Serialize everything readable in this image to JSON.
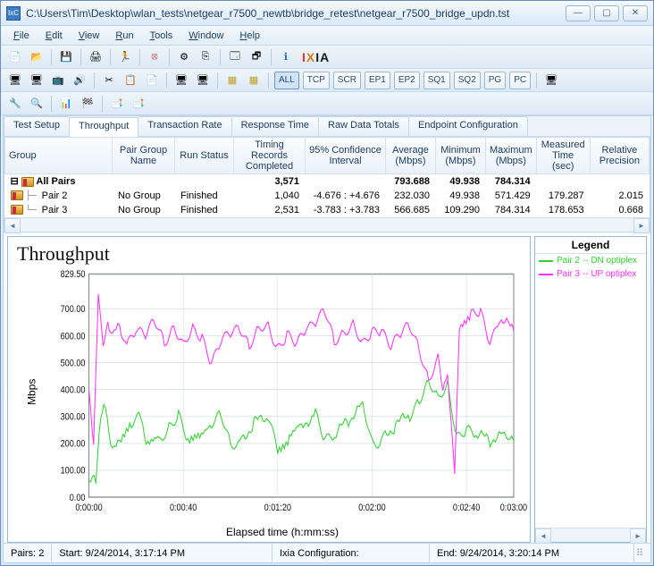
{
  "window": {
    "title": "C:\\Users\\Tim\\Desktop\\wlan_tests\\netgear_r7500_newtb\\bridge_retest\\netgear_r7500_bridge_updn.tst",
    "app_icon_label": "IxC"
  },
  "menu": {
    "file": "File",
    "edit": "Edit",
    "view": "View",
    "run": "Run",
    "tools": "Tools",
    "window": "Window",
    "help": "Help"
  },
  "toolbar2_labels": {
    "all": "ALL",
    "tcp": "TCP",
    "scr": "SCR",
    "ep1": "EP1",
    "ep2": "EP2",
    "sq1": "SQ1",
    "sq2": "SQ2",
    "pg": "PG",
    "pc": "PC"
  },
  "brand": {
    "i": "I",
    "x": "X",
    "ia": "IA"
  },
  "tabs": {
    "test_setup": "Test Setup",
    "throughput": "Throughput",
    "transaction_rate": "Transaction Rate",
    "response_time": "Response Time",
    "raw_data_totals": "Raw Data Totals",
    "endpoint_config": "Endpoint Configuration"
  },
  "grid": {
    "headers": {
      "group": "Group",
      "pair_group": "Pair Group Name",
      "run_status": "Run Status",
      "timing": "Timing Records Completed",
      "conf": "95% Confidence Interval",
      "avg": "Average (Mbps)",
      "min": "Minimum (Mbps)",
      "max": "Maximum (Mbps)",
      "meas": "Measured Time (sec)",
      "rel": "Relative Precision"
    },
    "rows": [
      {
        "group": "All Pairs",
        "pair": "",
        "status": "",
        "timing": "3,571",
        "conf": "",
        "avg": "793.688",
        "min": "49.938",
        "max": "784.314",
        "meas": "",
        "rel": "",
        "bold": true
      },
      {
        "group": "Pair 2",
        "pair": "No Group",
        "status": "Finished",
        "timing": "1,040",
        "conf": "-4.676 : +4.676",
        "avg": "232.030",
        "min": "49.938",
        "max": "571.429",
        "meas": "179.287",
        "rel": "2.015"
      },
      {
        "group": "Pair 3",
        "pair": "No Group",
        "status": "Finished",
        "timing": "2,531",
        "conf": "-3.783 : +3.783",
        "avg": "566.685",
        "min": "109.290",
        "max": "784.314",
        "meas": "178.653",
        "rel": "0.668"
      }
    ]
  },
  "chart": {
    "title": "Throughput",
    "ylabel": "Mbps",
    "xlabel": "Elapsed time (h:mm:ss)",
    "ylim": [
      0,
      829.5
    ],
    "yticks": [
      0,
      100,
      200,
      300,
      400,
      500,
      600,
      700,
      829.5
    ],
    "ytick_labels": [
      "0.00",
      "100.00",
      "200.00",
      "300.00",
      "400.00",
      "500.00",
      "600.00",
      "700.00",
      "829.50"
    ],
    "xlim": [
      0,
      180
    ],
    "xticks": [
      0,
      40,
      80,
      120,
      160,
      180
    ],
    "xtick_labels": [
      "0:00:00",
      "0:00:40",
      "0:01:20",
      "0:02:00",
      "0:02:40",
      "0:03:00"
    ],
    "background": "#ffffff",
    "grid_color": "#cdd7e2",
    "series": [
      {
        "name": "Pair 2 -- DN optiplex",
        "color": "#2fd22f",
        "data": [
          [
            0,
            60
          ],
          [
            3,
            55
          ],
          [
            5,
            300
          ],
          [
            7,
            335
          ],
          [
            10,
            180
          ],
          [
            13,
            195
          ],
          [
            18,
            285
          ],
          [
            22,
            310
          ],
          [
            25,
            190
          ],
          [
            30,
            210
          ],
          [
            34,
            270
          ],
          [
            38,
            305
          ],
          [
            42,
            200
          ],
          [
            47,
            215
          ],
          [
            52,
            278
          ],
          [
            56,
            300
          ],
          [
            60,
            195
          ],
          [
            64,
            210
          ],
          [
            70,
            275
          ],
          [
            76,
            300
          ],
          [
            80,
            190
          ],
          [
            85,
            215
          ],
          [
            90,
            260
          ],
          [
            96,
            320
          ],
          [
            100,
            205
          ],
          [
            104,
            220
          ],
          [
            110,
            290
          ],
          [
            116,
            340
          ],
          [
            120,
            200
          ],
          [
            124,
            210
          ],
          [
            130,
            270
          ],
          [
            136,
            300
          ],
          [
            140,
            370
          ],
          [
            144,
            430
          ],
          [
            148,
            360
          ],
          [
            152,
            420
          ],
          [
            156,
            230
          ],
          [
            160,
            245
          ],
          [
            164,
            225
          ],
          [
            170,
            215
          ],
          [
            176,
            230
          ],
          [
            180,
            210
          ]
        ]
      },
      {
        "name": "Pair 3 -- UP optiplex",
        "color": "#ff2fff",
        "data": [
          [
            0,
            400
          ],
          [
            2,
            200
          ],
          [
            4,
            760
          ],
          [
            6,
            560
          ],
          [
            8,
            640
          ],
          [
            10,
            590
          ],
          [
            13,
            640
          ],
          [
            16,
            570
          ],
          [
            20,
            630
          ],
          [
            24,
            600
          ],
          [
            28,
            650
          ],
          [
            32,
            580
          ],
          [
            36,
            640
          ],
          [
            40,
            560
          ],
          [
            44,
            620
          ],
          [
            48,
            600
          ],
          [
            52,
            500
          ],
          [
            56,
            570
          ],
          [
            60,
            610
          ],
          [
            64,
            640
          ],
          [
            68,
            560
          ],
          [
            72,
            620
          ],
          [
            76,
            640
          ],
          [
            80,
            560
          ],
          [
            84,
            600
          ],
          [
            88,
            560
          ],
          [
            92,
            630
          ],
          [
            96,
            660
          ],
          [
            100,
            690
          ],
          [
            104,
            570
          ],
          [
            108,
            620
          ],
          [
            112,
            650
          ],
          [
            116,
            560
          ],
          [
            120,
            610
          ],
          [
            124,
            630
          ],
          [
            128,
            560
          ],
          [
            132,
            600
          ],
          [
            136,
            640
          ],
          [
            140,
            560
          ],
          [
            144,
            430
          ],
          [
            148,
            510
          ],
          [
            150,
            380
          ],
          [
            152,
            450
          ],
          [
            155,
            110
          ],
          [
            157,
            640
          ],
          [
            162,
            670
          ],
          [
            166,
            690
          ],
          [
            170,
            580
          ],
          [
            174,
            660
          ],
          [
            180,
            620
          ]
        ]
      }
    ]
  },
  "legend": {
    "title": "Legend"
  },
  "status": {
    "pairs_label": "Pairs:",
    "pairs_value": "2",
    "start_label": "Start:",
    "start_value": "9/24/2014, 3:17:14 PM",
    "ixia_label": "Ixia Configuration:",
    "end_label": "End:",
    "end_value": "9/24/2014, 3:20:14 PM"
  }
}
